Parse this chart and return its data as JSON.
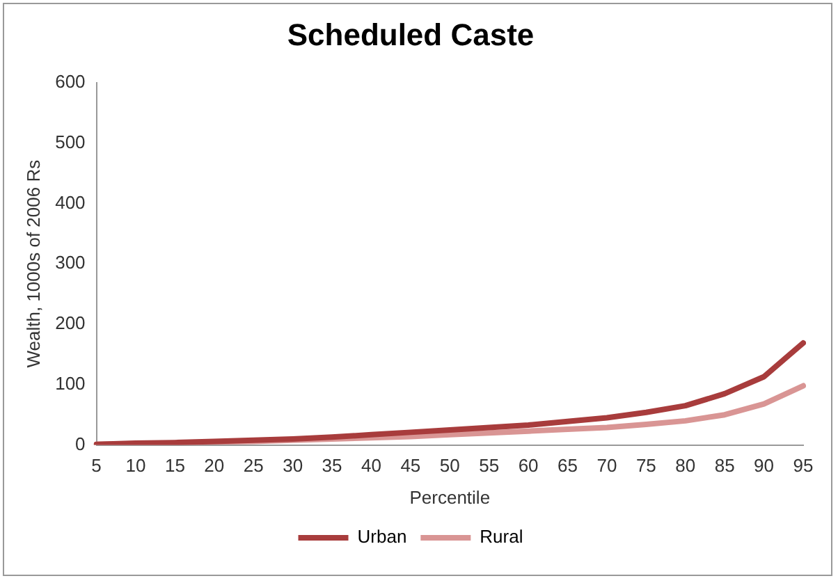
{
  "chart_data": {
    "type": "line",
    "title": "Scheduled Caste",
    "xlabel": "Percentile",
    "ylabel": "Wealth, 1000s of 2006 Rs",
    "categories": [
      "5",
      "10",
      "15",
      "20",
      "25",
      "30",
      "35",
      "40",
      "45",
      "50",
      "55",
      "60",
      "65",
      "70",
      "75",
      "80",
      "85",
      "90",
      "95"
    ],
    "series": [
      {
        "name": "Urban",
        "color": "#a83c3c",
        "values": [
          1,
          3,
          4,
          6,
          8,
          10,
          13,
          17,
          21,
          25,
          29,
          33,
          39,
          45,
          54,
          65,
          85,
          113,
          169
        ]
      },
      {
        "name": "Rural",
        "color": "#d99594",
        "values": [
          1,
          2,
          3,
          5,
          6,
          8,
          10,
          12,
          14,
          17,
          20,
          23,
          26,
          29,
          34,
          40,
          50,
          68,
          98
        ]
      }
    ],
    "ylim": [
      0,
      600
    ],
    "yticks": [
      0,
      100,
      200,
      300,
      400,
      500,
      600
    ],
    "grid": false,
    "legend": "bottom",
    "marker": "none",
    "line_style": "solid"
  }
}
